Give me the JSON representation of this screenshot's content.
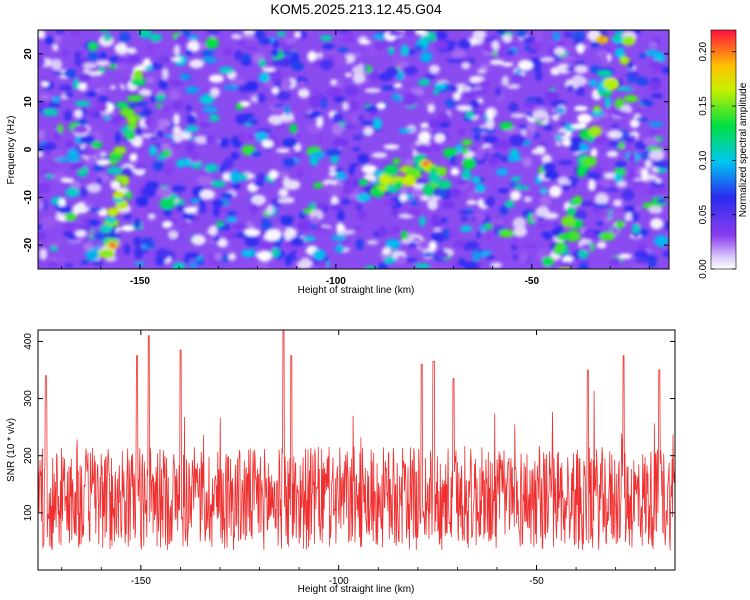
{
  "title": "KOM5.2025.213.12.45.G04",
  "colors": {
    "snr_line": "#f03030",
    "spectrogram_low": "#ffffff",
    "spectrogram_high": "#ff0000"
  },
  "chart_data": [
    {
      "type": "heatmap",
      "xlabel": "Height of straight line (km)",
      "ylabel": "Frequency (Hz)",
      "xlim": [
        -176,
        -15
      ],
      "ylim": [
        -25,
        25
      ],
      "x_ticks": [
        -150,
        -100,
        -50
      ],
      "y_ticks": [
        20,
        10,
        0,
        -10,
        -20
      ],
      "colorbar": {
        "label": "Normalized spectral amplitude",
        "range": [
          0,
          0.22
        ],
        "ticks": [
          0.0,
          0.05,
          0.1,
          0.15,
          0.2
        ],
        "tick_labels": [
          "0.00",
          "0.05",
          "0.10",
          "0.15",
          "0.20"
        ],
        "colormap": "rainbow (white-violet-blue-cyan-green-yellow-red)"
      },
      "features": [
        {
          "label": "band",
          "x_start": -158,
          "x_end": -152,
          "y_start": -21,
          "y_end": 15,
          "peak": 0.22,
          "at": [
            -157,
            -20
          ]
        },
        {
          "label": "band",
          "x_start": -91,
          "x_end": -72,
          "y_start": -9,
          "y_end": -2,
          "peak": 0.22,
          "at": [
            -77,
            -3
          ]
        },
        {
          "label": "band",
          "x_start": -43,
          "x_end": -27,
          "y_start": -24,
          "y_end": 24,
          "peak": 0.2,
          "at": [
            -32,
            23
          ]
        }
      ]
    },
    {
      "type": "line",
      "xlabel": "Height of straight line (km)",
      "ylabel": "SNR (10 * v/v)",
      "xlim": [
        -176,
        -15
      ],
      "ylim": [
        0,
        420
      ],
      "x_ticks": [
        -150,
        -100,
        -50
      ],
      "y_ticks": [
        100,
        200,
        300,
        400
      ],
      "grid": false,
      "series": [
        {
          "color": "#f03030",
          "baseline_mean": 125,
          "noise_amplitude": 90,
          "peaks": [
            {
              "x": -174,
              "y": 340
            },
            {
              "x": -148,
              "y": 410
            },
            {
              "x": -151,
              "y": 375
            },
            {
              "x": -140,
              "y": 385
            },
            {
              "x": -114,
              "y": 420
            },
            {
              "x": -112,
              "y": 375
            },
            {
              "x": -79,
              "y": 360
            },
            {
              "x": -76,
              "y": 365
            },
            {
              "x": -71,
              "y": 335
            },
            {
              "x": -37,
              "y": 350
            },
            {
              "x": -28,
              "y": 375
            },
            {
              "x": -19,
              "y": 350
            }
          ]
        }
      ]
    }
  ]
}
